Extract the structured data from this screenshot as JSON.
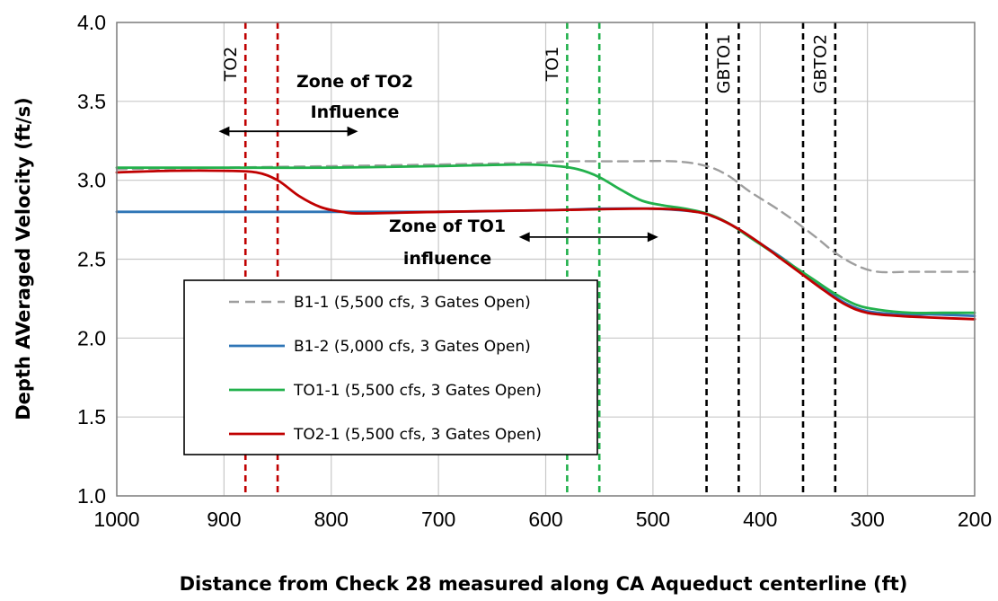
{
  "chart_data": {
    "type": "line",
    "xlabel": "Distance from Check 28 measured along CA Aqueduct centerline (ft)",
    "ylabel": "Depth AVeraged Velocity (ft/s)",
    "xlim": [
      1000,
      200
    ],
    "x_reversed": true,
    "ylim": [
      1.0,
      4.0
    ],
    "xticks": [
      1000,
      900,
      800,
      700,
      600,
      500,
      400,
      300,
      200
    ],
    "yticks": [
      "1.0",
      "1.5",
      "2.0",
      "2.5",
      "3.0",
      "3.5",
      "4.0"
    ],
    "grid": true,
    "legend_position": "lower-left",
    "series": [
      {
        "name": "B1-1 (5,500 cfs, 3 Gates Open)",
        "color": "#9e9e9e",
        "style": "dashed",
        "x": [
          1000,
          900,
          800,
          700,
          620,
          580,
          530,
          480,
          450,
          430,
          410,
          380,
          350,
          330,
          310,
          290,
          260,
          230,
          200
        ],
        "y": [
          3.07,
          3.08,
          3.09,
          3.1,
          3.11,
          3.12,
          3.12,
          3.12,
          3.09,
          3.03,
          2.93,
          2.8,
          2.65,
          2.54,
          2.46,
          2.42,
          2.42,
          2.42,
          2.42
        ]
      },
      {
        "name": "B1-2 (5,000 cfs, 3 Gates Open)",
        "color": "#2e75b6",
        "style": "solid",
        "x": [
          1000,
          900,
          800,
          700,
          600,
          550,
          500,
          460,
          440,
          420,
          400,
          380,
          360,
          340,
          320,
          300,
          270,
          240,
          200
        ],
        "y": [
          2.8,
          2.8,
          2.8,
          2.8,
          2.81,
          2.82,
          2.82,
          2.8,
          2.76,
          2.69,
          2.6,
          2.51,
          2.41,
          2.31,
          2.22,
          2.17,
          2.15,
          2.15,
          2.14
        ]
      },
      {
        "name": "TO1-1 (5,500 cfs, 3 Gates Open)",
        "color": "#22b14c",
        "style": "solid",
        "x": [
          1000,
          900,
          800,
          700,
          620,
          590,
          570,
          550,
          530,
          510,
          490,
          470,
          450,
          430,
          410,
          390,
          370,
          350,
          330,
          310,
          290,
          260,
          230,
          200
        ],
        "y": [
          3.08,
          3.08,
          3.08,
          3.09,
          3.1,
          3.09,
          3.07,
          3.02,
          2.94,
          2.87,
          2.84,
          2.82,
          2.79,
          2.73,
          2.64,
          2.55,
          2.46,
          2.37,
          2.28,
          2.21,
          2.18,
          2.16,
          2.16,
          2.16
        ]
      },
      {
        "name": "TO2-1 (5,500 cfs, 3 Gates Open)",
        "color": "#c00000",
        "style": "solid",
        "x": [
          1000,
          950,
          900,
          870,
          850,
          830,
          810,
          790,
          770,
          700,
          600,
          500,
          460,
          440,
          420,
          400,
          380,
          360,
          340,
          320,
          300,
          270,
          240,
          200
        ],
        "y": [
          3.05,
          3.06,
          3.06,
          3.05,
          3.0,
          2.9,
          2.83,
          2.8,
          2.79,
          2.8,
          2.81,
          2.82,
          2.8,
          2.76,
          2.69,
          2.6,
          2.5,
          2.4,
          2.3,
          2.21,
          2.16,
          2.14,
          2.13,
          2.12
        ]
      }
    ],
    "vertical_lines": [
      {
        "x": 880,
        "color": "#c00000",
        "label": "TO2"
      },
      {
        "x": 850,
        "color": "#c00000",
        "label": ""
      },
      {
        "x": 580,
        "color": "#22b14c",
        "label": "TO1"
      },
      {
        "x": 550,
        "color": "#22b14c",
        "label": ""
      },
      {
        "x": 450,
        "color": "#000000",
        "label": ""
      },
      {
        "x": 420,
        "color": "#000000",
        "label": "GBTO1"
      },
      {
        "x": 360,
        "color": "#000000",
        "label": ""
      },
      {
        "x": 330,
        "color": "#000000",
        "label": "GBTO2"
      }
    ],
    "annotations": [
      {
        "line1": "Zone of TO2",
        "line2": "Influence",
        "arrow_from": 905,
        "arrow_to": 775,
        "arrow_y": 3.31
      },
      {
        "line1": "Zone of TO1",
        "line2": "influence",
        "arrow_from": 625,
        "arrow_to": 495,
        "arrow_y": 2.64
      }
    ]
  }
}
